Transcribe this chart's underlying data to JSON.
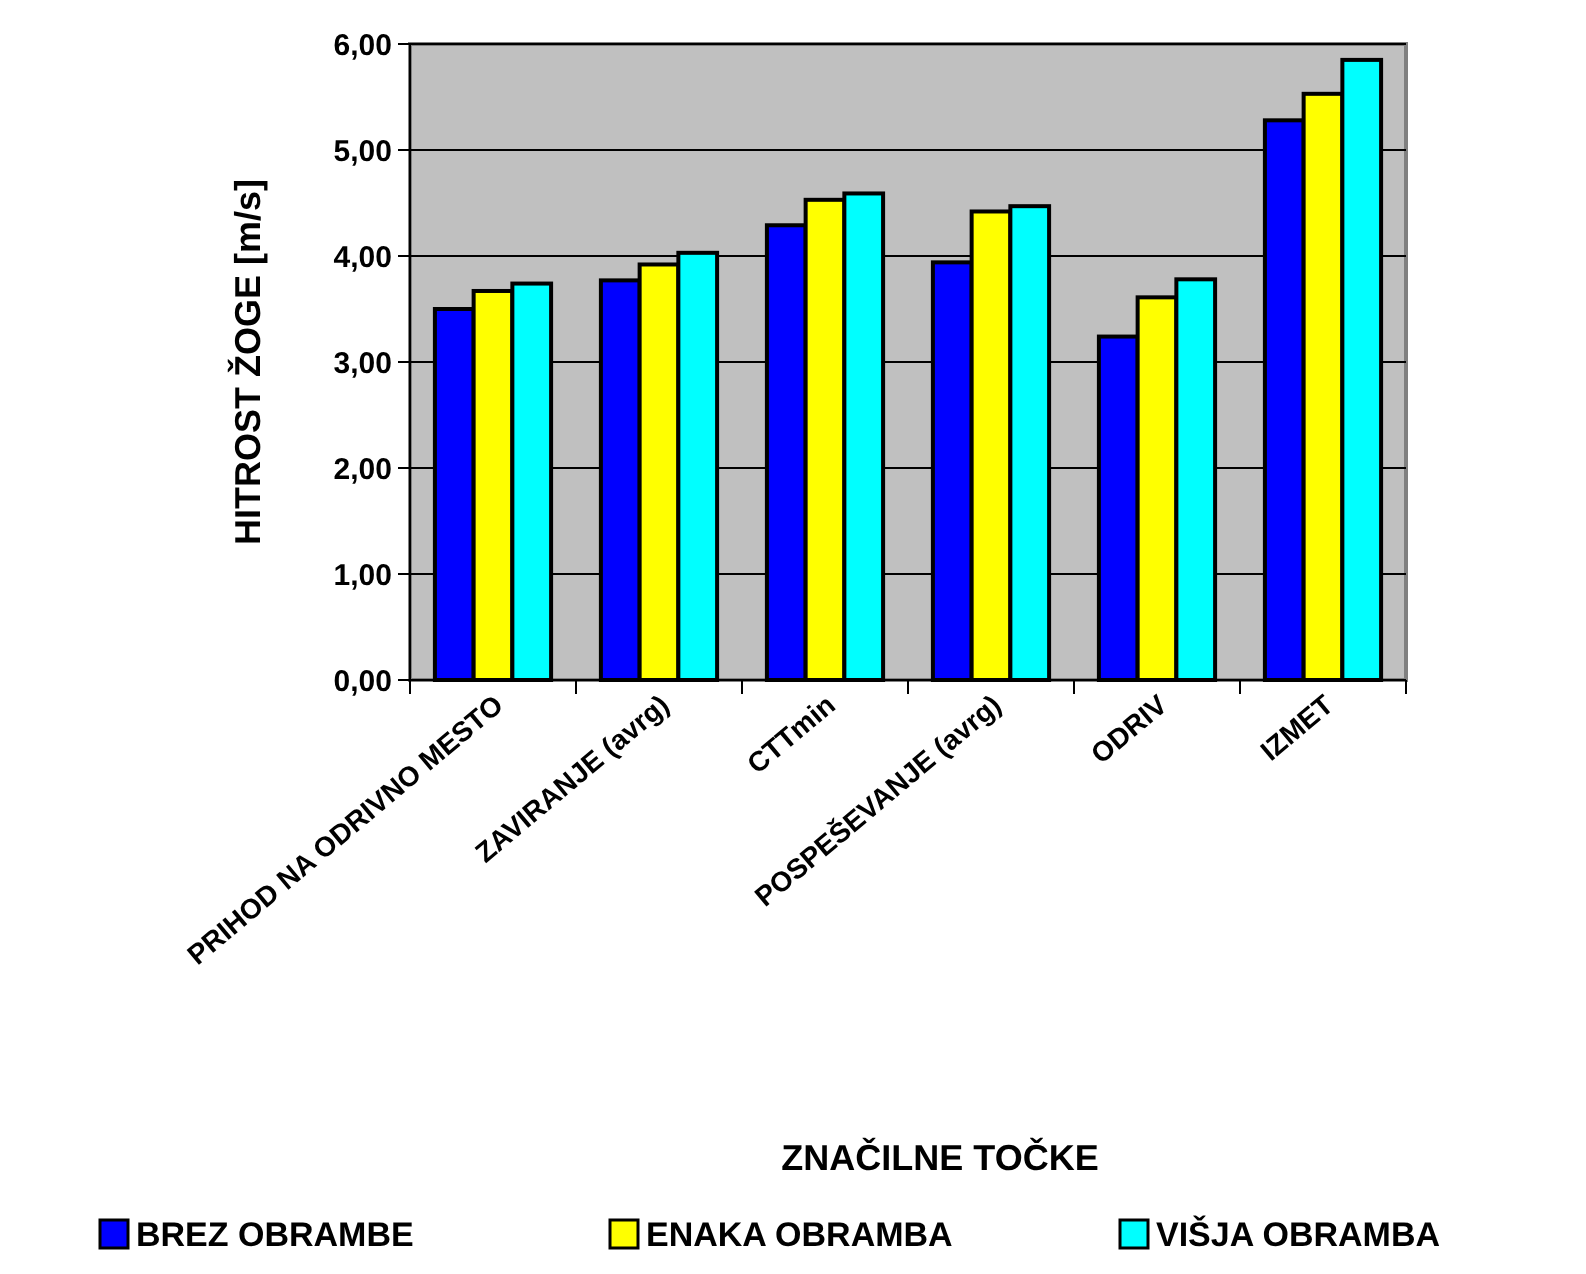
{
  "chart_data": {
    "type": "bar",
    "xlabel": "ZNAČILNE TOČKE",
    "ylabel": "HITROST ŽOGE [m/s]",
    "categories": [
      "PRIHOD NA ODRIVNO MESTO",
      "ZAVIRANJE (avrg)",
      "CTTmin",
      "POSPEŠEVANJE  (avrg)",
      "ODRIV",
      "IZMET"
    ],
    "series": [
      {
        "name": "BREZ OBRAMBE",
        "color": "#0000ff",
        "values": [
          3.5,
          3.77,
          4.29,
          3.94,
          3.24,
          5.28
        ]
      },
      {
        "name": "ENAKA OBRAMBA",
        "color": "#ffff00",
        "values": [
          3.67,
          3.92,
          4.53,
          4.42,
          3.61,
          5.53
        ]
      },
      {
        "name": "VIŠJA OBRAMBA",
        "color": "#00ffff",
        "values": [
          3.74,
          4.03,
          4.59,
          4.47,
          3.78,
          5.85
        ]
      }
    ],
    "ylim": [
      0,
      6
    ],
    "yticks": [
      {
        "value": 0,
        "label": "0,00"
      },
      {
        "value": 1,
        "label": "1,00"
      },
      {
        "value": 2,
        "label": "2,00"
      },
      {
        "value": 3,
        "label": "3,00"
      },
      {
        "value": 4,
        "label": "4,00"
      },
      {
        "value": 5,
        "label": "5,00"
      },
      {
        "value": 6,
        "label": "6,00"
      }
    ],
    "grid": "y",
    "legend": "bottom"
  }
}
